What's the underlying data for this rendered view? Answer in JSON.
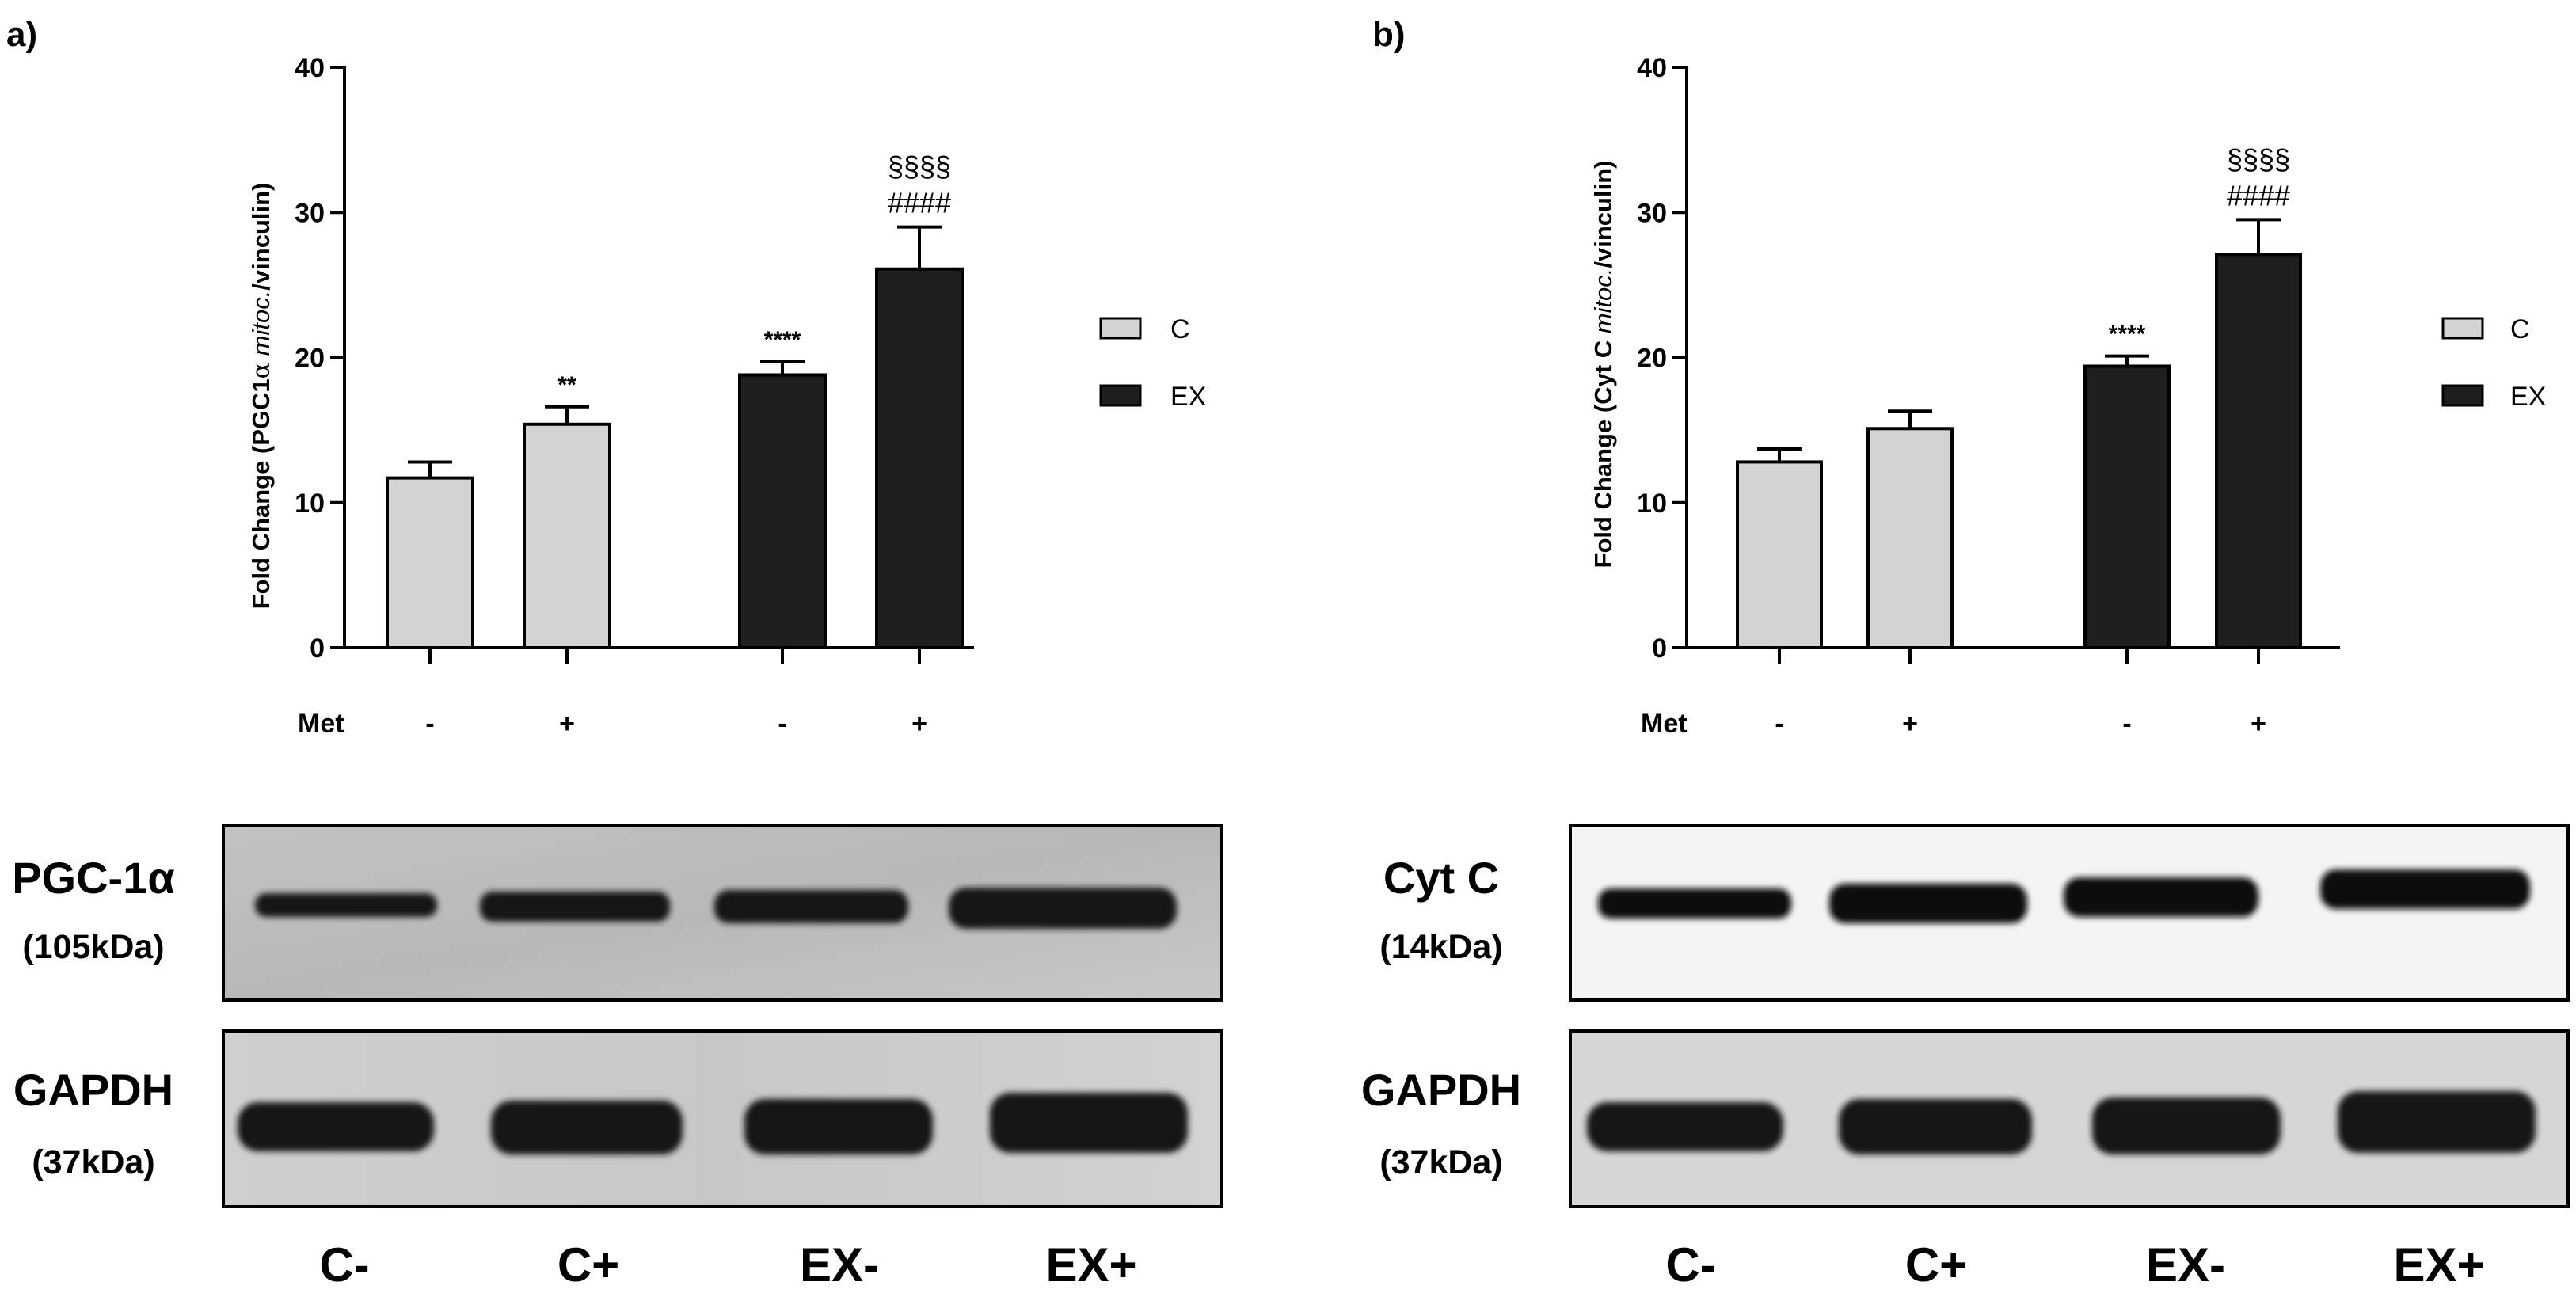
{
  "chart_data": [
    {
      "type": "bar",
      "panel_label": "a)",
      "ylabel_prefix": "Fold Change (PGC1",
      "ylabel_greek": "α",
      "ylabel_italic": "mitoc.",
      "ylabel_suffix": "/vinculin)",
      "ylim": [
        0,
        40
      ],
      "yticks": [
        "0",
        "10",
        "20",
        "30",
        "40"
      ],
      "row_label": "Met",
      "categories": [
        "-",
        "+",
        "-",
        "+"
      ],
      "values": [
        11.7,
        15.4,
        18.8,
        26.1
      ],
      "errors": [
        1.1,
        1.2,
        0.9,
        2.9
      ],
      "groups": [
        "C",
        "C",
        "EX",
        "EX"
      ],
      "annotations": [
        [],
        [
          "**"
        ],
        [
          "****"
        ],
        [
          "####",
          "§§§§"
        ]
      ],
      "legend": [
        {
          "name": "C",
          "color": "#d3d3d3"
        },
        {
          "name": "EX",
          "color": "#1e1e1e"
        }
      ],
      "legend_position": "right",
      "grid": false
    },
    {
      "type": "bar",
      "panel_label": "b)",
      "ylabel_prefix": "Fold Change (Cyt C ",
      "ylabel_greek": "",
      "ylabel_italic": "mitoc.",
      "ylabel_suffix": "/vinculin)",
      "ylim": [
        0,
        40
      ],
      "yticks": [
        "0",
        "10",
        "20",
        "30",
        "40"
      ],
      "row_label": "Met",
      "categories": [
        "-",
        "+",
        "-",
        "+"
      ],
      "values": [
        12.8,
        15.1,
        19.4,
        27.1
      ],
      "errors": [
        0.9,
        1.2,
        0.7,
        2.4
      ],
      "groups": [
        "C",
        "C",
        "EX",
        "EX"
      ],
      "annotations": [
        [],
        [],
        [
          "****"
        ],
        [
          "####",
          "§§§§"
        ]
      ],
      "legend": [
        {
          "name": "C",
          "color": "#d3d3d3"
        },
        {
          "name": "EX",
          "color": "#1e1e1e"
        }
      ],
      "legend_position": "right",
      "grid": false
    }
  ],
  "blots": [
    {
      "top_label": "PGC-1α",
      "top_kda": "(105kDa)",
      "bottom_label": "GAPDH",
      "bottom_kda": "(37kDa)",
      "lanes": [
        "C-",
        "C+",
        "EX-",
        "EX+"
      ]
    },
    {
      "top_label": "Cyt C",
      "top_kda": "(14kDa)",
      "bottom_label": "GAPDH",
      "bottom_kda": "(37kDa)",
      "lanes": [
        "C-",
        "C+",
        "EX-",
        "EX+"
      ]
    }
  ]
}
